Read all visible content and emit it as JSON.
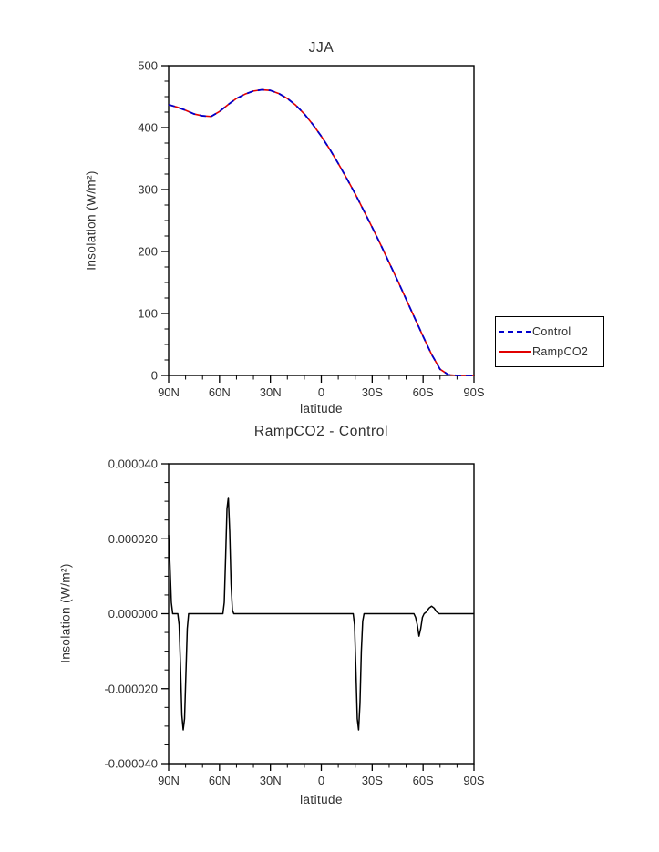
{
  "figure": {
    "background": "#ffffff",
    "axis_color": "#000000",
    "text_color": "#303030"
  },
  "chart_data": [
    {
      "id": "jja",
      "type": "line",
      "title": "JJA",
      "xlabel": "latitude",
      "ylabel": "Insolation (W/m²)",
      "xlim": [
        90,
        -90
      ],
      "ylim": [
        0,
        500
      ],
      "xticks": [
        {
          "value": 90,
          "label": "90N"
        },
        {
          "value": 60,
          "label": "60N"
        },
        {
          "value": 30,
          "label": "30N"
        },
        {
          "value": 0,
          "label": "0"
        },
        {
          "value": -30,
          "label": "30S"
        },
        {
          "value": -60,
          "label": "60S"
        },
        {
          "value": -90,
          "label": "90S"
        }
      ],
      "x_minor_per_major": 2,
      "yticks": [
        {
          "value": 0,
          "label": "0"
        },
        {
          "value": 100,
          "label": "100"
        },
        {
          "value": 200,
          "label": "200"
        },
        {
          "value": 300,
          "label": "300"
        },
        {
          "value": 400,
          "label": "400"
        },
        {
          "value": 500,
          "label": "500"
        }
      ],
      "y_minor_per_major": 3,
      "x": [
        90,
        85,
        80,
        75,
        70,
        65,
        60,
        55,
        50,
        45,
        40,
        35,
        30,
        25,
        20,
        15,
        10,
        5,
        0,
        -5,
        -10,
        -15,
        -20,
        -25,
        -30,
        -35,
        -40,
        -45,
        -50,
        -55,
        -60,
        -65,
        -70,
        -75,
        -80,
        -85,
        -90
      ],
      "series": [
        {
          "name": "RampCO2",
          "color": "#e10000",
          "width": 1.6,
          "dash": null,
          "values": [
            437,
            433,
            428,
            422,
            419,
            418,
            426,
            437,
            447,
            454,
            459,
            461,
            460,
            455,
            447,
            436,
            422,
            405,
            386,
            365,
            342,
            318,
            293,
            266,
            239,
            211,
            182,
            153,
            123,
            93,
            63,
            34,
            10,
            1,
            0,
            0,
            0
          ]
        },
        {
          "name": "Control",
          "color": "#0000cc",
          "width": 1.8,
          "dash": "7 5",
          "values": [
            437,
            433,
            428,
            422,
            419,
            418,
            426,
            437,
            447,
            454,
            459,
            461,
            460,
            455,
            447,
            436,
            422,
            405,
            386,
            365,
            342,
            318,
            293,
            266,
            239,
            211,
            182,
            153,
            123,
            93,
            63,
            34,
            10,
            1,
            0,
            0,
            0
          ]
        }
      ],
      "legend": {
        "entries": [
          {
            "label": "Control",
            "color": "#0000cc",
            "dash": "dashed"
          },
          {
            "label": "RampCO2",
            "color": "#e10000",
            "dash": "solid"
          }
        ]
      }
    },
    {
      "id": "diff",
      "type": "line",
      "title": "RampCO2 - Control",
      "xlabel": "latitude",
      "ylabel": "Insolation (W/m²)",
      "xlim": [
        90,
        -90
      ],
      "ylim": [
        -4e-05,
        4e-05
      ],
      "xticks": [
        {
          "value": 90,
          "label": "90N"
        },
        {
          "value": 60,
          "label": "60N"
        },
        {
          "value": 30,
          "label": "30N"
        },
        {
          "value": 0,
          "label": "0"
        },
        {
          "value": -30,
          "label": "30S"
        },
        {
          "value": -60,
          "label": "60S"
        },
        {
          "value": -90,
          "label": "90S"
        }
      ],
      "x_minor_per_major": 2,
      "yticks": [
        {
          "value": -4e-05,
          "label": "-0.000040"
        },
        {
          "value": -2e-05,
          "label": "-0.000020"
        },
        {
          "value": 0,
          "label": "0.000000"
        },
        {
          "value": 2e-05,
          "label": "0.000020"
        },
        {
          "value": 4e-05,
          "label": "0.000040"
        }
      ],
      "y_minor_per_major": 3,
      "series": [
        {
          "name": "RampCO2 - Control",
          "color": "#000000",
          "width": 1.5,
          "dash": null,
          "points": [
            [
              90,
              2.1e-05
            ],
            [
              89.2,
              1.3e-05
            ],
            [
              88.4,
              3e-06
            ],
            [
              87.6,
              0
            ],
            [
              84.6,
              0
            ],
            [
              83.8,
              -3e-06
            ],
            [
              83.0,
              -1.4e-05
            ],
            [
              82.2,
              -2.7e-05
            ],
            [
              81.4,
              -3.1e-05
            ],
            [
              80.6,
              -2.8e-05
            ],
            [
              79.8,
              -1.6e-05
            ],
            [
              79.0,
              -4e-06
            ],
            [
              78.2,
              0
            ],
            [
              58.0,
              0
            ],
            [
              57.2,
              3e-06
            ],
            [
              56.4,
              1.5e-05
            ],
            [
              55.6,
              2.8e-05
            ],
            [
              54.8,
              3.1e-05
            ],
            [
              54.0,
              2.2e-05
            ],
            [
              53.2,
              8e-06
            ],
            [
              52.4,
              1e-06
            ],
            [
              51.6,
              0
            ],
            [
              30,
              0
            ],
            [
              0,
              0
            ],
            [
              -18.8,
              0
            ],
            [
              -19.6,
              -3e-06
            ],
            [
              -20.4,
              -1.5e-05
            ],
            [
              -21.2,
              -2.8e-05
            ],
            [
              -22.0,
              -3.1e-05
            ],
            [
              -22.8,
              -2.4e-05
            ],
            [
              -23.6,
              -1e-05
            ],
            [
              -24.4,
              -2e-06
            ],
            [
              -25.2,
              0
            ],
            [
              -54.6,
              0
            ],
            [
              -55.6,
              -1e-06
            ],
            [
              -56.6,
              -3e-06
            ],
            [
              -57.6,
              -6e-06
            ],
            [
              -58.6,
              -4e-06
            ],
            [
              -59.6,
              -1e-06
            ],
            [
              -60.6,
              0
            ],
            [
              -62.0,
              5e-07
            ],
            [
              -63.5,
              1.5e-06
            ],
            [
              -65.0,
              2e-06
            ],
            [
              -66.5,
              1.5e-06
            ],
            [
              -68.0,
              5e-07
            ],
            [
              -69.5,
              0
            ],
            [
              -90,
              0
            ]
          ]
        }
      ]
    }
  ]
}
